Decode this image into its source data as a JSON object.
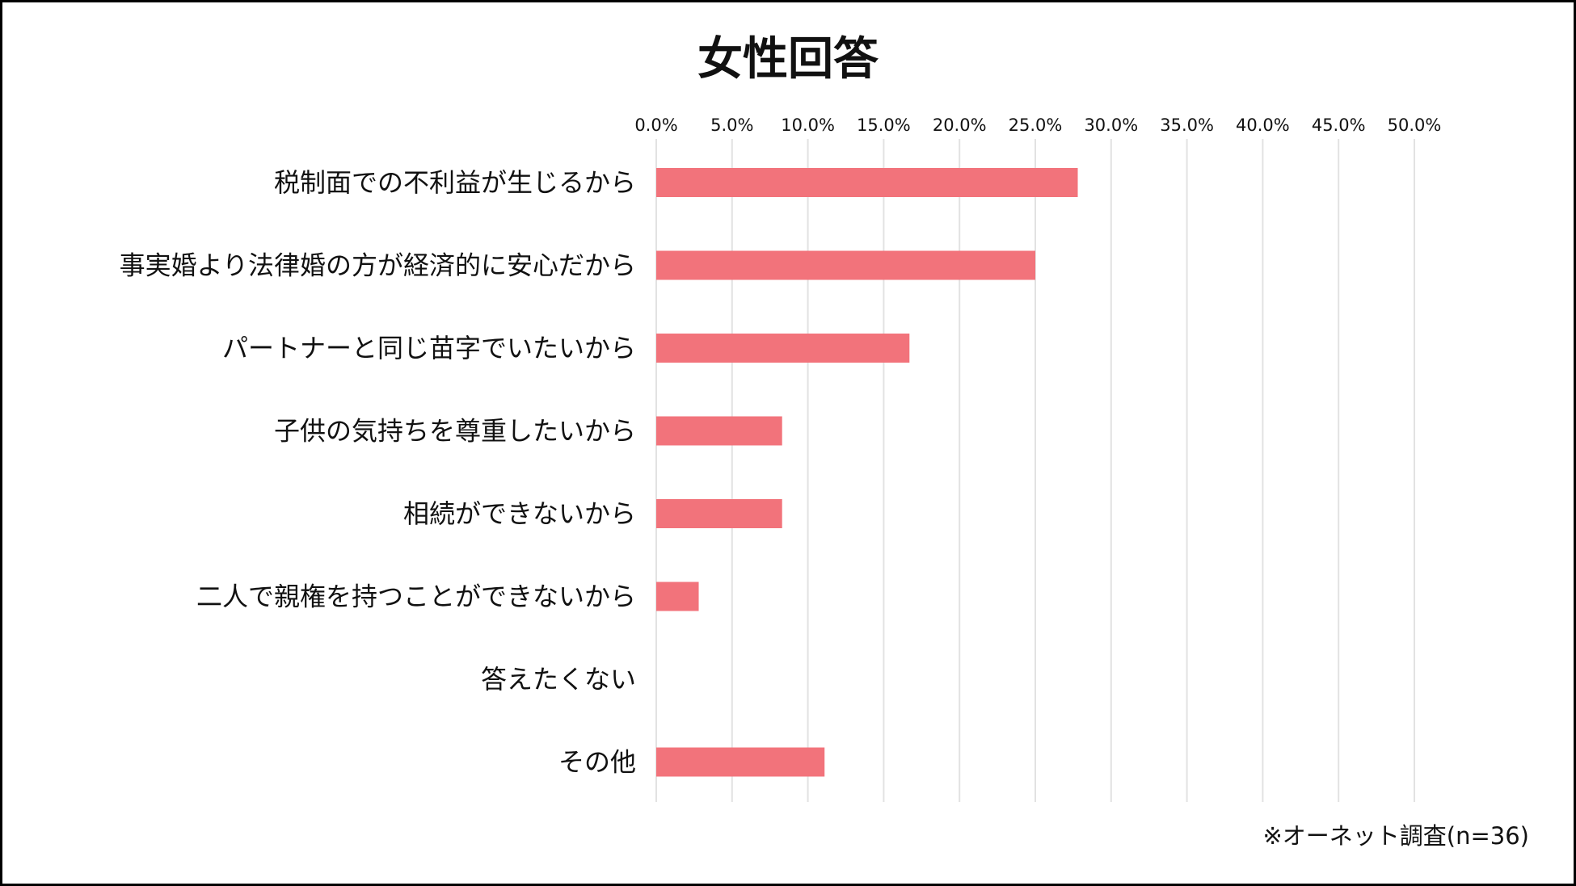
{
  "chart_data": {
    "type": "bar",
    "orientation": "horizontal",
    "title": "女性回答",
    "categories": [
      "税制面での不利益が生じるから",
      "事実婚より法律婚の方が経済的に安心だから",
      "パートナーと同じ苗字でいたいから",
      "子供の気持ちを尊重したいから",
      "相続ができないから",
      "二人で親権を持つことができないから",
      "答えたくない",
      "その他"
    ],
    "values": [
      27.8,
      25.0,
      16.7,
      8.3,
      8.3,
      2.8,
      0.0,
      11.1
    ],
    "xlim": [
      0,
      50
    ],
    "ticks": [
      "0.0%",
      "5.0%",
      "10.0%",
      "15.0%",
      "20.0%",
      "25.0%",
      "30.0%",
      "35.0%",
      "40.0%",
      "45.0%",
      "50.0%"
    ],
    "x_axis_position": "top",
    "grid": true,
    "bar_color": "#f2737b",
    "grid_color": "#e2e2e2"
  },
  "note": "※オーネット調査(n=36)"
}
